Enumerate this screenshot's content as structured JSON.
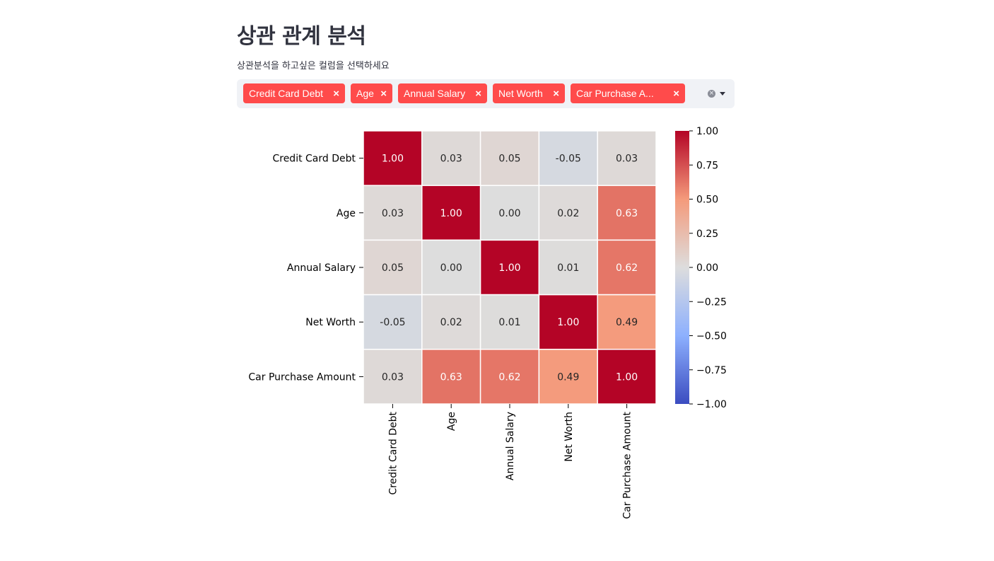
{
  "page": {
    "title": "상관 관계 분석",
    "subtitle": "상관분석을 하고싶은 컬럼을 선택하세요"
  },
  "multiselect": {
    "selected": [
      "Credit Card Debt",
      "Age",
      "Annual Salary",
      "Net Worth",
      "Car Purchase A..."
    ],
    "remove_icon": "x-icon",
    "clear_icon": "clear-circle-icon",
    "dropdown_icon": "chevron-down-icon",
    "tag_color": "#ff4b4b",
    "background": "#f0f2f6"
  },
  "chart_data": {
    "type": "heatmap",
    "rows": [
      "Credit Card Debt",
      "Age",
      "Annual Salary",
      "Net Worth",
      "Car Purchase Amount"
    ],
    "columns": [
      "Credit Card Debt",
      "Age",
      "Annual Salary",
      "Net Worth",
      "Car Purchase Amount"
    ],
    "values": [
      [
        1.0,
        0.03,
        0.05,
        -0.05,
        0.03
      ],
      [
        0.03,
        1.0,
        0.0,
        0.02,
        0.63
      ],
      [
        0.05,
        0.0,
        1.0,
        0.01,
        0.62
      ],
      [
        -0.05,
        0.02,
        0.01,
        1.0,
        0.49
      ],
      [
        0.03,
        0.63,
        0.62,
        0.49,
        1.0
      ]
    ],
    "annotation_format": "0.00",
    "colormap": "coolwarm",
    "vmin": -1.0,
    "vmax": 1.0,
    "colorbar_ticks": [
      1.0,
      0.75,
      0.5,
      0.25,
      0.0,
      -0.25,
      -0.5,
      -0.75,
      -1.0
    ],
    "colorbar_tick_labels": [
      "1.00",
      "0.75",
      "0.50",
      "0.25",
      "0.00",
      "−0.25",
      "−0.50",
      "−0.75",
      "−1.00"
    ],
    "xlabel": "",
    "ylabel": "",
    "x_tick_rotation": "vertical",
    "cell_border_color": "#ffffff"
  }
}
